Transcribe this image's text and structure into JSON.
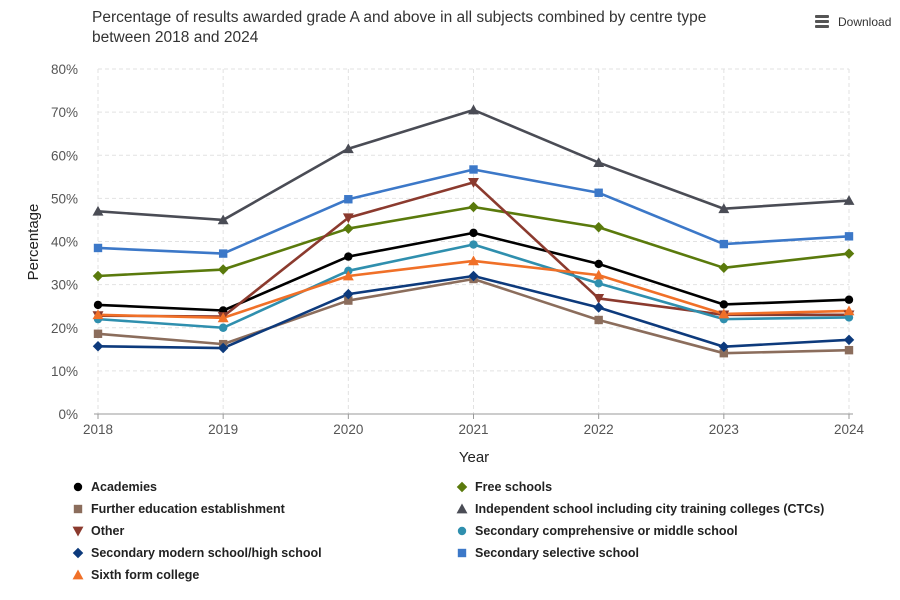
{
  "header": {
    "title": "Percentage of results awarded grade A and above in all subjects combined by centre type between 2018 and 2024",
    "download_label": "Download"
  },
  "chart_data": {
    "type": "line",
    "title": "Percentage of results awarded grade A and above in all subjects combined by centre type between 2018 and 2024",
    "xlabel": "Year",
    "ylabel": "Percentage",
    "x": [
      "2018",
      "2019",
      "2020",
      "2021",
      "2022",
      "2023",
      "2024"
    ],
    "ylim": [
      0,
      80
    ],
    "yticks": [
      "0%",
      "10%",
      "20%",
      "30%",
      "40%",
      "50%",
      "60%",
      "70%",
      "80%"
    ],
    "grid": true,
    "legend_position": "bottom",
    "series": [
      {
        "name": "Academies",
        "color": "#000000",
        "marker": "circle",
        "values": [
          25.3,
          24.0,
          36.5,
          42.0,
          34.8,
          25.4,
          26.5
        ]
      },
      {
        "name": "Free schools",
        "color": "#5a7a0c",
        "marker": "diamond",
        "values": [
          32.0,
          33.5,
          43.0,
          48.0,
          43.3,
          33.9,
          37.2
        ]
      },
      {
        "name": "Further education establishment",
        "color": "#8b6d5c",
        "marker": "square",
        "values": [
          18.6,
          16.2,
          26.3,
          31.3,
          21.8,
          14.1,
          14.8
        ]
      },
      {
        "name": "Independent school including city training colleges (CTCs)",
        "color": "#4a4c55",
        "marker": "triangle",
        "values": [
          47.0,
          45.0,
          61.5,
          70.5,
          58.3,
          47.6,
          49.5
        ]
      },
      {
        "name": "Other",
        "color": "#8b3a2e",
        "marker": "triangle-down",
        "values": [
          22.8,
          22.6,
          45.5,
          53.7,
          26.8,
          23.0,
          23.0
        ]
      },
      {
        "name": "Secondary comprehensive or middle school",
        "color": "#2f8fae",
        "marker": "circle",
        "values": [
          22.0,
          20.0,
          33.2,
          39.3,
          30.3,
          22.0,
          22.4
        ]
      },
      {
        "name": "Secondary modern school/high school",
        "color": "#0d3a7c",
        "marker": "diamond",
        "values": [
          15.7,
          15.3,
          27.8,
          32.0,
          24.7,
          15.6,
          17.2
        ]
      },
      {
        "name": "Secondary selective school",
        "color": "#3c78c8",
        "marker": "square",
        "values": [
          38.5,
          37.2,
          49.8,
          56.7,
          51.3,
          39.4,
          41.2
        ]
      },
      {
        "name": "Sixth form college",
        "color": "#f07028",
        "marker": "triangle",
        "values": [
          23.0,
          22.3,
          32.0,
          35.5,
          32.2,
          23.2,
          23.9
        ]
      }
    ]
  }
}
